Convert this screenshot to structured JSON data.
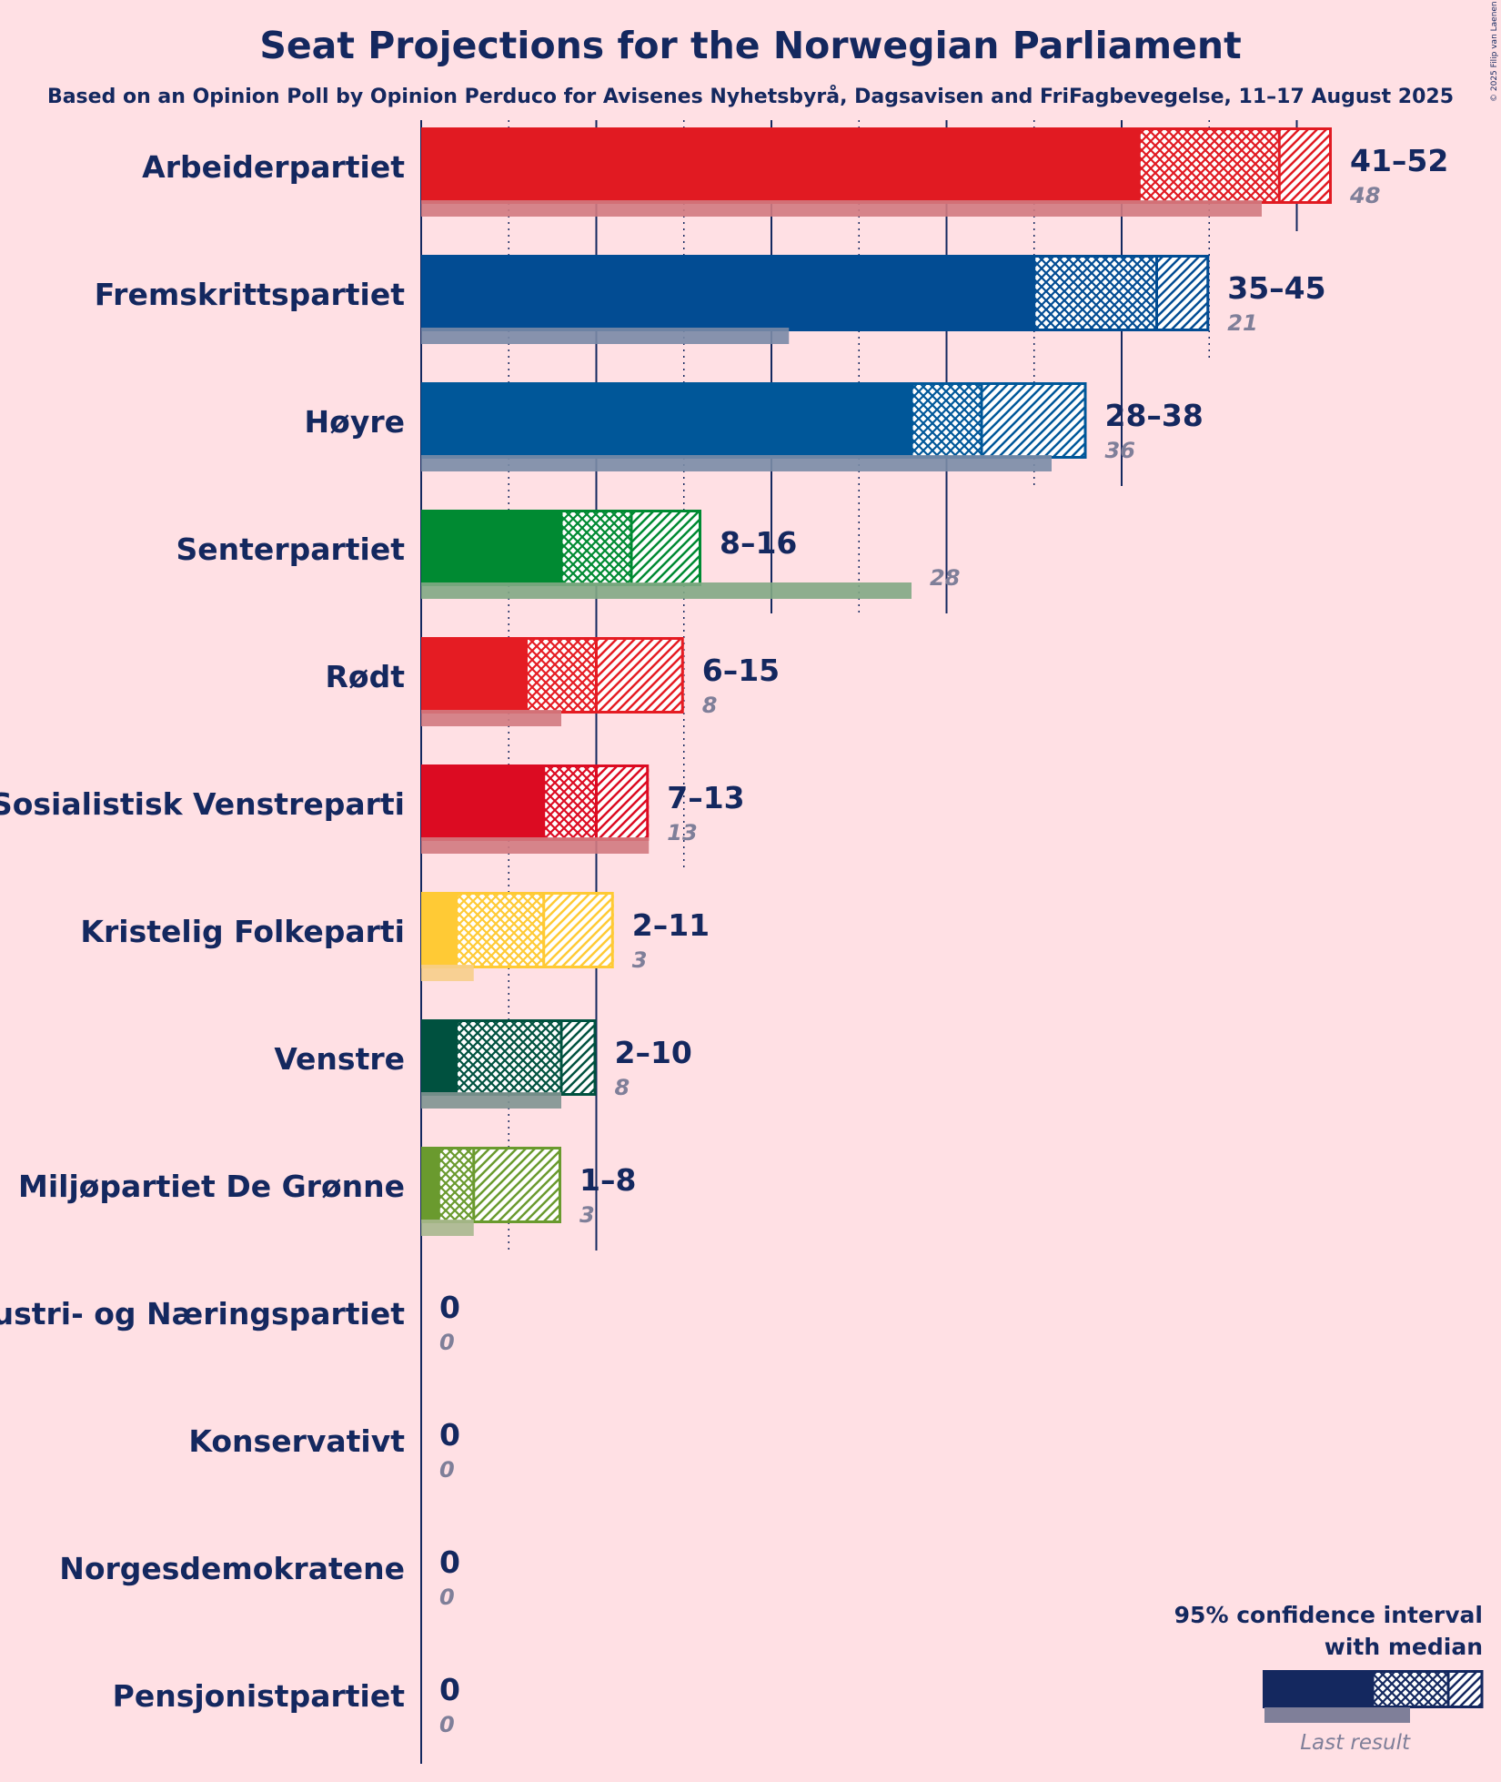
{
  "chart_data": {
    "type": "bar",
    "title": "Seat Projections for the Norwegian Parliament",
    "subtitle": "Based on an Opinion Poll by Opinion Perduco for Avisenes Nyhetsbyrå, Dagsavisen and FriFagbevegelse, 11–17 August 2025",
    "copyright": "© 2025 Filip van Laenen",
    "xlabel": "",
    "ylabel": "",
    "xlim": [
      0,
      55
    ],
    "gridlines": [
      5,
      10,
      15,
      20,
      25,
      30,
      35,
      40,
      45,
      50
    ],
    "parties": [
      {
        "name": "Arbeiderpartiet",
        "low": 41,
        "median": 49,
        "high": 52,
        "last": 48,
        "range_label": "41–52",
        "last_label": "48",
        "color": "#E11A22",
        "last_color": "#D27A80"
      },
      {
        "name": "Fremskrittspartiet",
        "low": 35,
        "median": 42,
        "high": 45,
        "last": 21,
        "range_label": "35–45",
        "last_label": "21",
        "color": "#024C93",
        "last_color": "#7A8AA6"
      },
      {
        "name": "Høyre",
        "low": 28,
        "median": 32,
        "high": 38,
        "last": 36,
        "range_label": "28–38",
        "last_label": "36",
        "color": "#005799",
        "last_color": "#7A8CA6"
      },
      {
        "name": "Senterpartiet",
        "low": 8,
        "median": 12,
        "high": 16,
        "last": 28,
        "range_label": "8–16",
        "last_label": "28",
        "color": "#008A32",
        "last_color": "#82A884"
      },
      {
        "name": "Rødt",
        "low": 6,
        "median": 10,
        "high": 15,
        "last": 8,
        "range_label": "6–15",
        "last_label": "8",
        "color": "#E51C23",
        "last_color": "#D27A80"
      },
      {
        "name": "Sosialistisk Venstreparti",
        "low": 7,
        "median": 10,
        "high": 13,
        "last": 13,
        "range_label": "7–13",
        "last_label": "13",
        "color": "#DC0B22",
        "last_color": "#D27A80"
      },
      {
        "name": "Kristelig Folkeparti",
        "low": 2,
        "median": 7,
        "high": 11,
        "last": 3,
        "range_label": "2–11",
        "last_label": "3",
        "color": "#FFCA35",
        "last_color": "#F7CE8A"
      },
      {
        "name": "Venstre",
        "low": 2,
        "median": 8,
        "high": 10,
        "last": 8,
        "range_label": "2–10",
        "last_label": "8",
        "color": "#00513F",
        "last_color": "#7F9490"
      },
      {
        "name": "Miljøpartiet De Grønne",
        "low": 1,
        "median": 3,
        "high": 8,
        "last": 3,
        "range_label": "1–8",
        "last_label": "3",
        "color": "#6A9A2E",
        "last_color": "#A8B88E"
      },
      {
        "name": "Industri- og Næringspartiet",
        "low": 0,
        "median": 0,
        "high": 0,
        "last": 0,
        "range_label": "0",
        "last_label": "0",
        "color": "#1B3466",
        "last_color": "#7A8AA6"
      },
      {
        "name": "Konservativt",
        "low": 0,
        "median": 0,
        "high": 0,
        "last": 0,
        "range_label": "0",
        "last_label": "0",
        "color": "#1B3466",
        "last_color": "#7A8AA6"
      },
      {
        "name": "Norgesdemokratene",
        "low": 0,
        "median": 0,
        "high": 0,
        "last": 0,
        "range_label": "0",
        "last_label": "0",
        "color": "#1B3466",
        "last_color": "#7A8AA6"
      },
      {
        "name": "Pensjonistpartiet",
        "low": 0,
        "median": 0,
        "high": 0,
        "last": 0,
        "range_label": "0",
        "last_label": "0",
        "color": "#1B3466",
        "last_color": "#7A8AA6"
      }
    ],
    "legend": {
      "line1": "95% confidence interval",
      "line2": "with median",
      "last_result": "Last result",
      "placement": "bottom-right",
      "color": "#14285F",
      "last_color": "#7F7F99"
    }
  }
}
